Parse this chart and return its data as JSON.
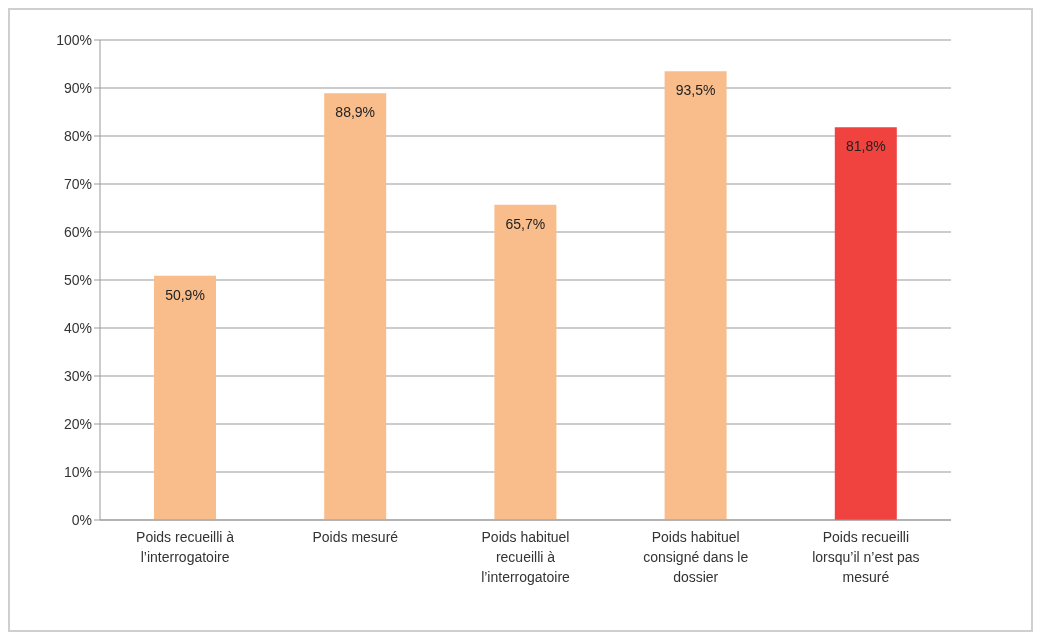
{
  "chart_data": {
    "type": "bar",
    "categories": [
      "Poids recueilli à l’interrogatoire",
      "Poids mesuré",
      "Poids habituel recueilli à l’interrogatoire",
      "Poids habituel consigné dans le dossier",
      "Poids recueilli lorsqu’il n’est pas mesuré"
    ],
    "values": [
      50.9,
      88.9,
      65.7,
      93.5,
      81.8
    ],
    "colors": [
      "#f9bd8b",
      "#f9bd8b",
      "#f9bd8b",
      "#f9bd8b",
      "#f0423f"
    ],
    "value_labels": [
      "50,9%",
      "88,9%",
      "65,7%",
      "93,5%",
      "81,8%"
    ],
    "ylim": [
      0,
      100
    ],
    "yticks": [
      {
        "value": 0,
        "label": "0%"
      },
      {
        "value": 10,
        "label": "10%"
      },
      {
        "value": 20,
        "label": "20%"
      },
      {
        "value": 30,
        "label": "30%"
      },
      {
        "value": 40,
        "label": "40%"
      },
      {
        "value": 50,
        "label": "50%"
      },
      {
        "value": 60,
        "label": "60%"
      },
      {
        "value": 70,
        "label": "70%"
      },
      {
        "value": 80,
        "label": "80%"
      },
      {
        "value": 90,
        "label": "90%"
      },
      {
        "value": 100,
        "label": "100%"
      }
    ],
    "grid": "y"
  }
}
